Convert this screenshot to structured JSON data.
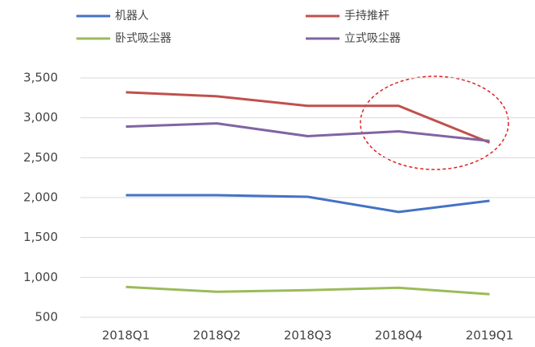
{
  "chart_data": {
    "type": "line",
    "categories": [
      "2018Q1",
      "2018Q2",
      "2018Q3",
      "2018Q4",
      "2019Q1"
    ],
    "series": [
      {
        "name": "机器人",
        "color": "#4472c4",
        "values": [
          2030,
          2030,
          2010,
          1820,
          1960
        ]
      },
      {
        "name": "手持推杆",
        "color": "#c0504d",
        "values": [
          3320,
          3270,
          3150,
          3150,
          2690
        ]
      },
      {
        "name": "卧式吸尘器",
        "color": "#9bbb59",
        "values": [
          880,
          820,
          840,
          870,
          790
        ]
      },
      {
        "name": "立式吸尘器",
        "color": "#8064a2",
        "values": [
          2890,
          2930,
          2770,
          2830,
          2710
        ]
      }
    ],
    "ylim": [
      500,
      3500
    ],
    "yticks": [
      500,
      {
        "value": 1000,
        "label": "1,000"
      },
      {
        "value": 1500,
        "label": "1,500"
      },
      {
        "value": 2000,
        "label": "2,000"
      },
      {
        "value": 2500,
        "label": "2,500"
      },
      {
        "value": 3000,
        "label": "3,000"
      },
      {
        "value": 3500,
        "label": "3,500"
      }
    ],
    "grid": true
  }
}
